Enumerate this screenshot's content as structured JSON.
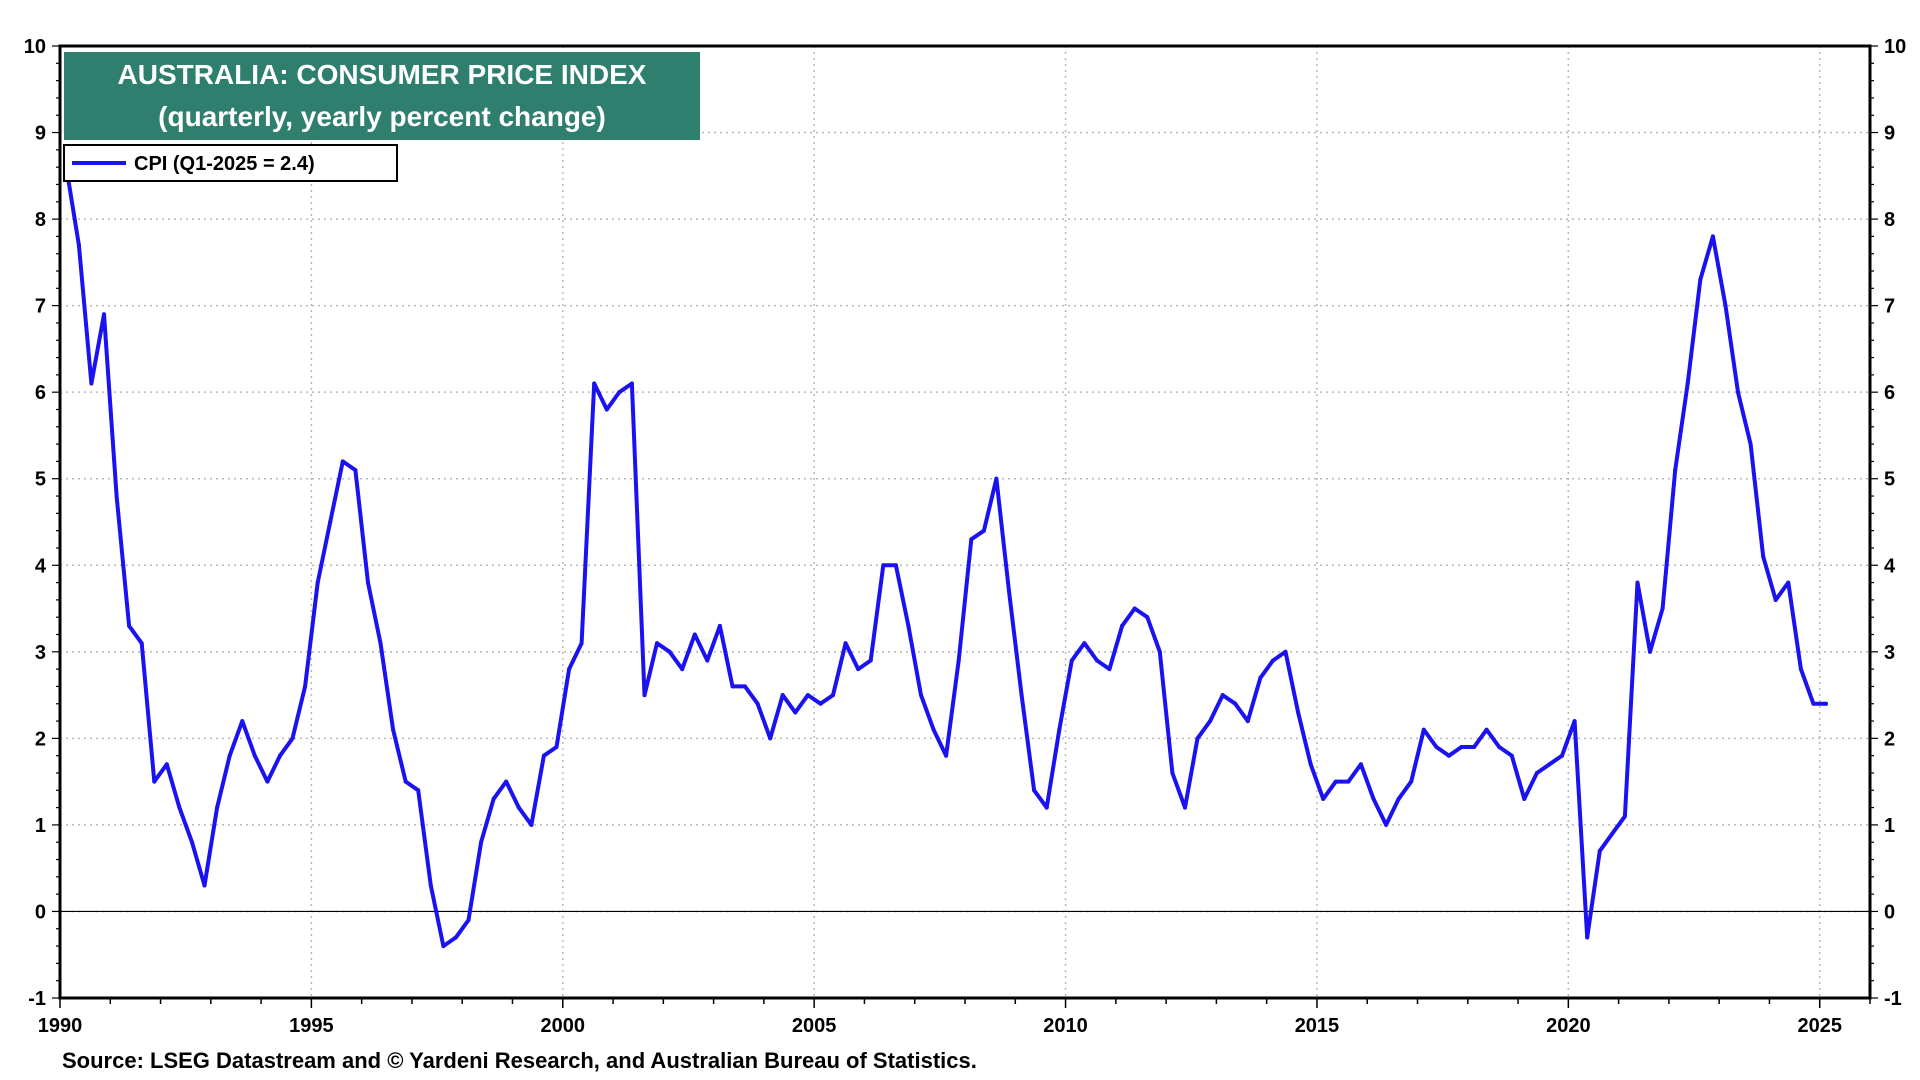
{
  "chart_data": {
    "type": "line",
    "title": "AUSTRALIA: CONSUMER PRICE INDEX",
    "subtitle": "(quarterly, yearly percent change)",
    "xlabel": "",
    "ylabel": "",
    "xlim": [
      1990,
      2026
    ],
    "ylim": [
      -1,
      10
    ],
    "x_ticks": [
      1990,
      1995,
      2000,
      2005,
      2010,
      2015,
      2020,
      2025
    ],
    "x_tick_labels": [
      "1990",
      "1995",
      "2000",
      "2005",
      "2010",
      "2015",
      "2020",
      "2025"
    ],
    "y_ticks": [
      -1,
      0,
      1,
      2,
      3,
      4,
      5,
      6,
      7,
      8,
      9,
      10
    ],
    "y_tick_labels": [
      "-1",
      "0",
      "1",
      "2",
      "3",
      "4",
      "5",
      "6",
      "7",
      "8",
      "9",
      "10"
    ],
    "grid": true,
    "zero_line": true,
    "legend_position": "top-left",
    "series": [
      {
        "name": "CPI (Q1-2025 = 2.4)",
        "color": "#1a12f0",
        "x_start": 1990.125,
        "x_step": 0.25,
        "values": [
          8.6,
          7.7,
          6.1,
          6.9,
          4.8,
          3.3,
          3.1,
          1.5,
          1.7,
          1.2,
          0.8,
          0.3,
          1.2,
          1.8,
          2.2,
          1.8,
          1.5,
          1.8,
          2.0,
          2.6,
          3.8,
          4.5,
          5.2,
          5.1,
          3.8,
          3.1,
          2.1,
          1.5,
          1.4,
          0.3,
          -0.4,
          -0.3,
          -0.1,
          0.8,
          1.3,
          1.5,
          1.2,
          1.0,
          1.8,
          1.9,
          2.8,
          3.1,
          6.1,
          5.8,
          6.0,
          6.1,
          2.5,
          3.1,
          3.0,
          2.8,
          3.2,
          2.9,
          3.3,
          2.6,
          2.6,
          2.4,
          2.0,
          2.5,
          2.3,
          2.5,
          2.4,
          2.5,
          3.1,
          2.8,
          2.9,
          4.0,
          4.0,
          3.3,
          2.5,
          2.1,
          1.8,
          2.9,
          4.3,
          4.4,
          5.0,
          3.7,
          2.5,
          1.4,
          1.2,
          2.1,
          2.9,
          3.1,
          2.9,
          2.8,
          3.3,
          3.5,
          3.4,
          3.0,
          1.6,
          1.2,
          2.0,
          2.2,
          2.5,
          2.4,
          2.2,
          2.7,
          2.9,
          3.0,
          2.3,
          1.7,
          1.3,
          1.5,
          1.5,
          1.7,
          1.3,
          1.0,
          1.3,
          1.5,
          2.1,
          1.9,
          1.8,
          1.9,
          1.9,
          2.1,
          1.9,
          1.8,
          1.3,
          1.6,
          1.7,
          1.8,
          2.2,
          -0.3,
          0.7,
          0.9,
          1.1,
          3.8,
          3.0,
          3.5,
          5.1,
          6.1,
          7.3,
          7.8,
          7.0,
          6.0,
          5.4,
          4.1,
          3.6,
          3.8,
          2.8,
          2.4,
          2.4
        ]
      }
    ]
  },
  "source": "Source: LSEG Datastream and © Yardeni Research, and Australian Bureau of Statistics.",
  "colors": {
    "title_bg": "#2e7f6e",
    "title_fg": "#ffffff",
    "line": "#1a12f0",
    "grid": "#b8b8b8",
    "axis": "#000000"
  }
}
